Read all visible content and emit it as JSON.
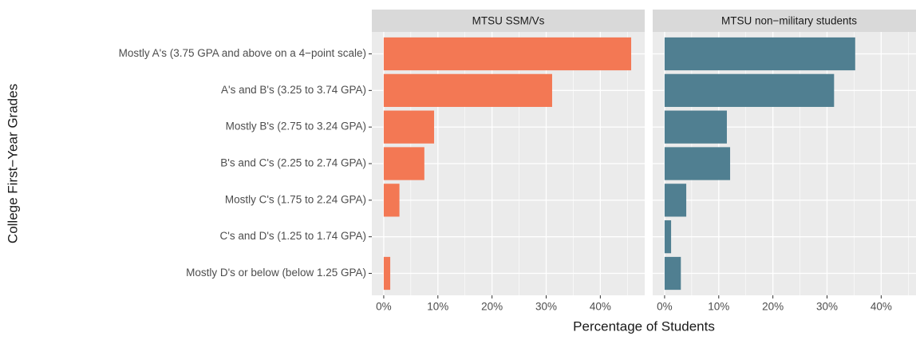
{
  "chart_data": {
    "type": "bar",
    "orientation": "horizontal",
    "x_label": "Percentage of Students",
    "y_label": "College First−Year Grades",
    "categories": [
      "Mostly A's (3.75 GPA and above on a 4−point scale)",
      "A's and B's (3.25 to 3.74 GPA)",
      "Mostly B's (2.75 to 3.24 GPA)",
      "B's and C's (2.25 to 2.74 GPA)",
      "Mostly C's (1.75 to 2.24 GPA)",
      "C's and D's (1.25 to 1.74 GPA)",
      "Mostly D's or below (below 1.25 GPA)"
    ],
    "series": [
      {
        "name": "MTSU SSM/Vs",
        "color": "#f37854",
        "values": [
          45.7,
          31.1,
          9.3,
          7.5,
          2.9,
          0,
          1.2
        ]
      },
      {
        "name": "MTSU non−military students",
        "color": "#507f91",
        "values": [
          35.2,
          31.3,
          11.5,
          12.1,
          4.0,
          1.2,
          3.0
        ]
      }
    ],
    "xlim": [
      -2.2,
      48.2
    ],
    "xticks": [
      {
        "value": 0,
        "label": "0%"
      },
      {
        "value": 10,
        "label": "10%"
      },
      {
        "value": 20,
        "label": "20%"
      },
      {
        "value": 30,
        "label": "30%"
      },
      {
        "value": 40,
        "label": "40%"
      }
    ],
    "grid": true
  }
}
